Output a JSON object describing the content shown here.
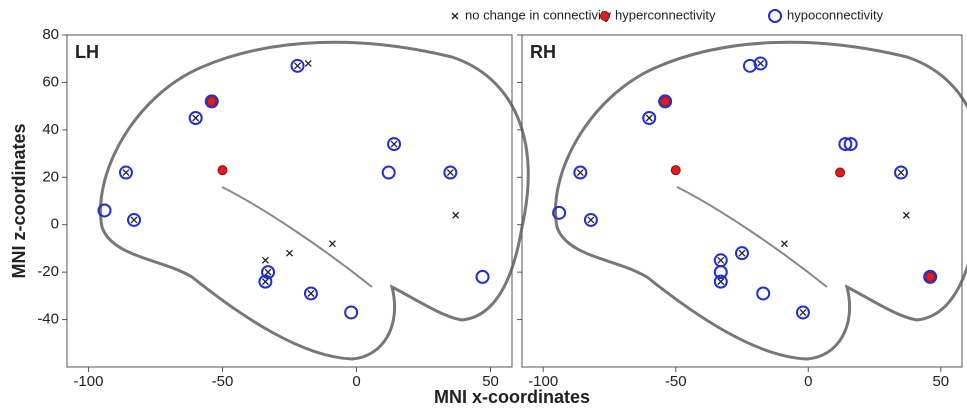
{
  "chart_data": {
    "type": "scatter",
    "x_label": "MNI x-coordinates",
    "y_label": "MNI z-coordinates",
    "xlim": [
      -108,
      58
    ],
    "ylim": [
      -60,
      80
    ],
    "xticks": [
      -100,
      -50,
      0,
      50
    ],
    "yticks": [
      -40,
      -20,
      0,
      20,
      40,
      60,
      80
    ],
    "series": [
      {
        "name": "no change in connectivity",
        "color": "#222222",
        "marker": "x"
      },
      {
        "name": "hyperconnectivity",
        "color": "#e41a1c",
        "marker": "filled-circle"
      },
      {
        "name": "hypoconnectivity",
        "color": "#1f2fd6",
        "marker": "open-circle"
      }
    ],
    "panels": [
      {
        "title": "LH",
        "points": [
          {
            "x": [
              -22,
              -18,
              -60,
              -86,
              -83,
              14,
              35,
              37,
              -9,
              -25,
              -34,
              -33,
              -34,
              -17
            ],
            "values": [
              67,
              68,
              45,
              22,
              2,
              34,
              22,
              4,
              -8,
              -12,
              -15,
              -20,
              -24,
              -29
            ]
          },
          {
            "x": [
              -54,
              -50
            ],
            "values": [
              52,
              23
            ]
          },
          {
            "x": [
              -22,
              -54,
              -60,
              -86,
              -94,
              -83,
              14,
              12,
              35,
              47,
              -33,
              -34,
              -17,
              -2
            ],
            "values": [
              67,
              52,
              45,
              22,
              6,
              2,
              34,
              22,
              22,
              -22,
              -20,
              -24,
              -29,
              -37
            ]
          }
        ]
      },
      {
        "title": "RH",
        "points": [
          {
            "x": [
              -18,
              -60,
              -86,
              -82,
              35,
              37,
              -9,
              -25,
              -33,
              -33,
              -2
            ],
            "values": [
              68,
              45,
              22,
              2,
              22,
              4,
              -8,
              -12,
              -15,
              -24,
              -37
            ]
          },
          {
            "x": [
              -54,
              -50,
              12,
              46
            ],
            "values": [
              52,
              23,
              22,
              -22
            ]
          },
          {
            "x": [
              -22,
              -18,
              -54,
              -60,
              -86,
              -94,
              -82,
              14,
              16,
              35,
              46,
              -25,
              -33,
              -33,
              -33,
              -17,
              -2
            ],
            "values": [
              67,
              68,
              52,
              45,
              22,
              5,
              2,
              34,
              34,
              22,
              -22,
              -12,
              -15,
              -20,
              -24,
              -29,
              -37
            ]
          }
        ]
      }
    ]
  }
}
